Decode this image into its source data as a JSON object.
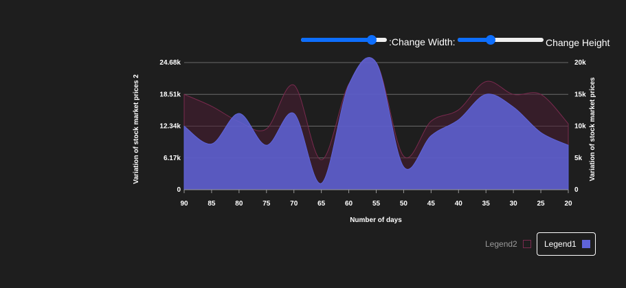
{
  "controls": {
    "width_label": ":Change Width:",
    "height_label": "Change Height",
    "width_value": 0.82,
    "height_value": 0.38
  },
  "colors": {
    "background": "#1e1e1e",
    "series1": "#5f64d9",
    "series2": "#4a1d33",
    "series2_stroke": "#7a2a4e",
    "slider_accent": "#0d6efd",
    "slider_track": "#efefef",
    "grid": "#6b6b6b"
  },
  "legend": {
    "items": [
      {
        "label": "Legend2",
        "state": "inactive"
      },
      {
        "label": "Legend1",
        "state": "active"
      }
    ]
  },
  "chart_data": {
    "type": "area",
    "xlabel": "Number of days",
    "ylabel_left": "Variation of stock market prices 2",
    "ylabel_right": "Variation of stock market prices",
    "x": [
      90,
      85,
      80,
      75,
      70,
      65,
      60,
      55,
      50,
      45,
      40,
      35,
      30,
      25,
      20
    ],
    "x_ticks": [
      "90",
      "85",
      "80",
      "75",
      "70",
      "65",
      "60",
      "55",
      "50",
      "45",
      "40",
      "35",
      "30",
      "25",
      "20"
    ],
    "y_left_ticks": [
      "0",
      "6.17k",
      "12.34k",
      "18.51k",
      "24.68k"
    ],
    "y_left_range": [
      0,
      24680
    ],
    "y_right_ticks": [
      "0",
      "5k",
      "10k",
      "15k",
      "20k"
    ],
    "y_right_range": [
      0,
      20000
    ],
    "grid": true,
    "legend_position": "bottom-right",
    "series": [
      {
        "name": "Legend2",
        "axis": "left",
        "values": [
          18500,
          16200,
          13200,
          11800,
          20300,
          5800,
          20500,
          24680,
          6500,
          13300,
          15500,
          21000,
          18500,
          18500,
          12800
        ]
      },
      {
        "name": "Legend1",
        "axis": "right",
        "values": [
          10000,
          7200,
          12000,
          7000,
          12000,
          1000,
          16500,
          20000,
          3600,
          8500,
          11000,
          15000,
          13000,
          9000,
          7000
        ]
      }
    ]
  }
}
